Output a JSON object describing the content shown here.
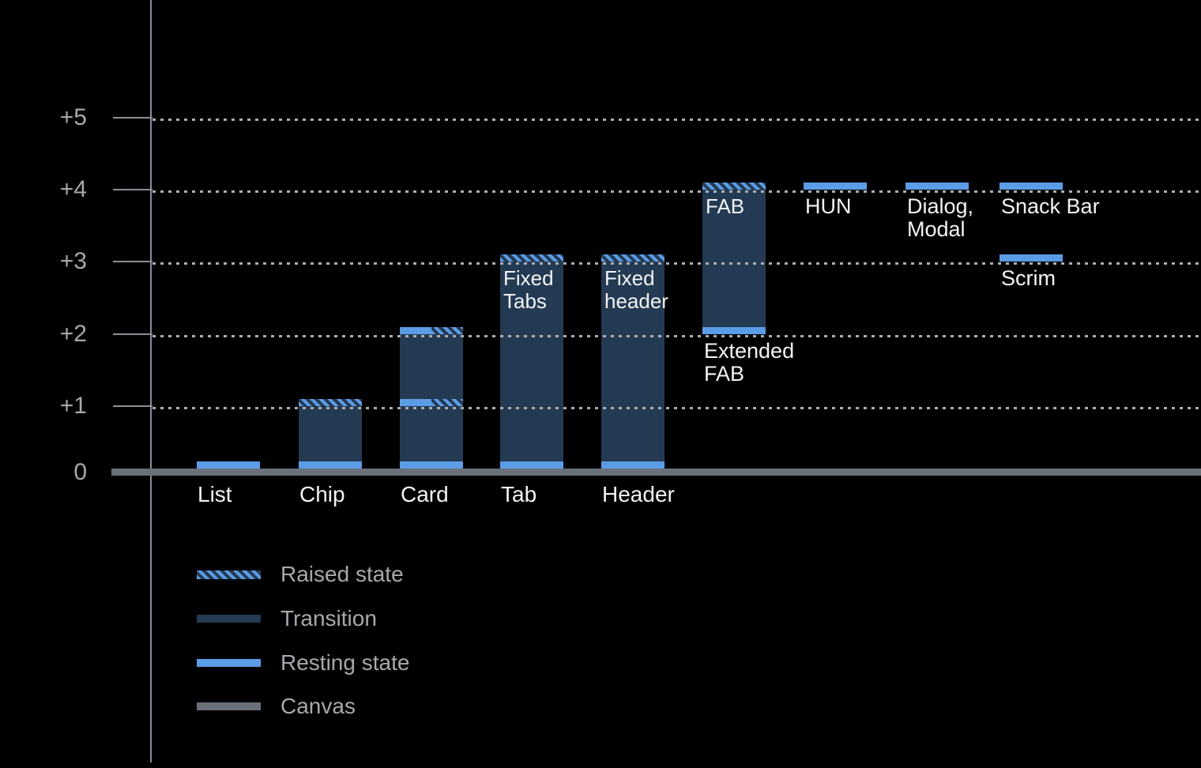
{
  "colors": {
    "background": "#000000",
    "resting_state_blue": "#5B9CE6",
    "transition_navy": "#243A52",
    "canvas_gray": "#6A717B",
    "axis_line_gray": "#8A9099",
    "grid_dot_gray": "#A9AEB4",
    "axis_label_gray": "#A5A9AE",
    "legend_label_gray": "#A5A9AE",
    "bar_label_white": "#F2F3F4"
  },
  "chart_data": {
    "type": "bar",
    "ylim": [
      0,
      5
    ],
    "grid": "dotted horizontal lines at each elevation level",
    "legend_position": "bottom-left",
    "y_ticks": [
      {
        "label": "+5",
        "level": 5
      },
      {
        "label": "+4",
        "level": 4
      },
      {
        "label": "+3",
        "level": 3
      },
      {
        "label": "+2",
        "level": 2
      },
      {
        "label": "+1",
        "level": 1
      },
      {
        "label": "0",
        "level": 0
      }
    ],
    "legend": [
      {
        "key": "raised",
        "label": "Raised state"
      },
      {
        "key": "transition",
        "label": "Transition"
      },
      {
        "key": "resting",
        "label": "Resting state"
      },
      {
        "key": "canvas",
        "label": "Canvas"
      }
    ],
    "bars": [
      {
        "name": "List",
        "column": 0,
        "transition": null,
        "markers": [
          {
            "level": 0,
            "style": "resting"
          }
        ],
        "labels": [
          {
            "lines": [
              "List"
            ],
            "placement": "below-canvas"
          }
        ]
      },
      {
        "name": "Chip",
        "column": 1,
        "transition": [
          0,
          1
        ],
        "markers": [
          {
            "level": 0,
            "style": "resting"
          },
          {
            "level": 1,
            "style": "raised"
          }
        ],
        "labels": [
          {
            "lines": [
              "Chip"
            ],
            "placement": "below-canvas"
          }
        ]
      },
      {
        "name": "Card",
        "column": 2,
        "transition": [
          0,
          2
        ],
        "markers": [
          {
            "level": 0,
            "style": "resting"
          },
          {
            "level": 1,
            "style": "resting-raised"
          },
          {
            "level": 2,
            "style": "resting-raised"
          }
        ],
        "labels": [
          {
            "lines": [
              "Card"
            ],
            "placement": "below-canvas"
          }
        ]
      },
      {
        "name": "Tab",
        "column": 3,
        "transition": [
          0,
          3
        ],
        "markers": [
          {
            "level": 0,
            "style": "resting"
          },
          {
            "level": 3,
            "style": "raised"
          }
        ],
        "labels": [
          {
            "lines": [
              "Tab"
            ],
            "placement": "below-canvas"
          },
          {
            "lines": [
              "Fixed",
              "Tabs"
            ],
            "placement": "inside-top",
            "level": 3
          }
        ]
      },
      {
        "name": "Header",
        "column": 4,
        "transition": [
          0,
          3
        ],
        "markers": [
          {
            "level": 0,
            "style": "resting"
          },
          {
            "level": 3,
            "style": "raised"
          }
        ],
        "labels": [
          {
            "lines": [
              "Header"
            ],
            "placement": "below-canvas"
          },
          {
            "lines": [
              "Fixed",
              "header"
            ],
            "placement": "inside-top",
            "level": 3
          }
        ]
      },
      {
        "name": "FAB",
        "column": 5,
        "transition": [
          2,
          4
        ],
        "markers": [
          {
            "level": 2,
            "style": "resting"
          },
          {
            "level": 4,
            "style": "raised"
          }
        ],
        "labels": [
          {
            "lines": [
              "FAB"
            ],
            "placement": "inside-top",
            "level": 4
          },
          {
            "lines": [
              "Extended",
              "FAB"
            ],
            "placement": "below-level",
            "level": 2
          }
        ]
      },
      {
        "name": "HUN",
        "column": 6,
        "transition": null,
        "markers": [
          {
            "level": 4,
            "style": "resting"
          }
        ],
        "labels": [
          {
            "lines": [
              "HUN"
            ],
            "placement": "below-level",
            "level": 4
          }
        ]
      },
      {
        "name": "Dialog, Modal",
        "column": 7,
        "transition": null,
        "markers": [
          {
            "level": 4,
            "style": "resting"
          }
        ],
        "labels": [
          {
            "lines": [
              "Dialog,",
              "Modal"
            ],
            "placement": "below-level",
            "level": 4
          }
        ]
      },
      {
        "name": "Snack Bar",
        "column": 8,
        "transition": null,
        "markers": [
          {
            "level": 4,
            "style": "resting"
          }
        ],
        "labels": [
          {
            "lines": [
              "Snack Bar"
            ],
            "placement": "below-level",
            "level": 4
          }
        ]
      },
      {
        "name": "Scrim",
        "column": 8,
        "transition": null,
        "markers": [
          {
            "level": 3,
            "style": "resting"
          }
        ],
        "labels": [
          {
            "lines": [
              "Scrim"
            ],
            "placement": "below-level",
            "level": 3
          }
        ]
      }
    ]
  }
}
